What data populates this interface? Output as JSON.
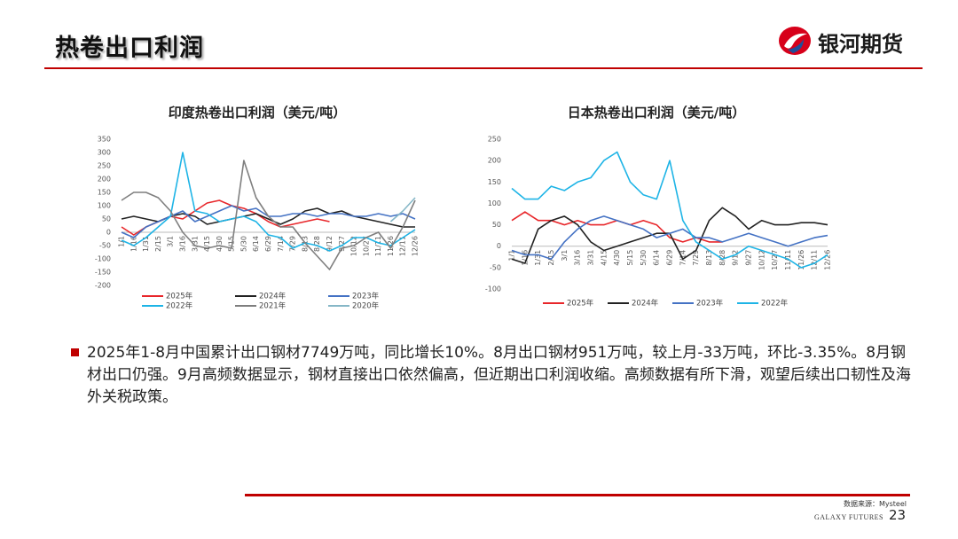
{
  "header": {
    "title": "热卷出口利润",
    "logo": "银河期货"
  },
  "chart_data": [
    {
      "type": "line",
      "title": "印度热卷出口利润（美元/吨）",
      "categories": [
        "1/1",
        "1/16",
        "1/31",
        "2/15",
        "3/1",
        "3/16",
        "3/31",
        "4/15",
        "4/30",
        "5/15",
        "5/30",
        "6/14",
        "6/29",
        "7/14",
        "7/29",
        "8/13",
        "8/28",
        "9/12",
        "9/27",
        "10/12",
        "10/27",
        "11/11",
        "11/26",
        "12/11",
        "12/26"
      ],
      "ylim": [
        -200,
        350
      ],
      "yticks": [
        -200,
        -150,
        -100,
        -50,
        0,
        50,
        100,
        150,
        200,
        250,
        300,
        350
      ],
      "legend": "bottom",
      "series": [
        {
          "name": "2025年",
          "color": "#e8262a",
          "values": [
            20,
            -10,
            20,
            40,
            60,
            50,
            80,
            110,
            120,
            100,
            90,
            70,
            40,
            20,
            30,
            40,
            50,
            40,
            null,
            null,
            null,
            null,
            null,
            null,
            null
          ]
        },
        {
          "name": "2024年",
          "color": "#222222",
          "values": [
            50,
            60,
            50,
            40,
            60,
            70,
            60,
            30,
            40,
            50,
            60,
            70,
            50,
            30,
            50,
            80,
            90,
            70,
            80,
            60,
            50,
            40,
            30,
            20,
            20
          ]
        },
        {
          "name": "2023年",
          "color": "#4472c4",
          "values": [
            0,
            -20,
            20,
            40,
            60,
            80,
            40,
            60,
            80,
            100,
            80,
            90,
            60,
            60,
            70,
            70,
            60,
            70,
            70,
            60,
            60,
            70,
            60,
            70,
            50
          ]
        },
        {
          "name": "2022年",
          "color": "#1eb4e6",
          "values": [
            -30,
            -50,
            -20,
            20,
            60,
            300,
            80,
            70,
            40,
            50,
            60,
            40,
            -10,
            -20,
            -60,
            -40,
            -50,
            -70,
            -50,
            -20,
            -20,
            -40,
            -50,
            -20,
            10
          ]
        },
        {
          "name": "2021年",
          "color": "#7f7f7f",
          "values": [
            120,
            150,
            150,
            130,
            80,
            0,
            -50,
            -60,
            -50,
            -60,
            270,
            130,
            60,
            20,
            20,
            -40,
            -90,
            -140,
            -60,
            -50,
            -20,
            0,
            -60,
            20,
            120
          ]
        },
        {
          "name": "2020年",
          "color": "#86b7c7",
          "values": [
            null,
            null,
            null,
            null,
            null,
            null,
            null,
            null,
            null,
            null,
            null,
            null,
            null,
            null,
            null,
            null,
            null,
            null,
            null,
            null,
            null,
            null,
            40,
            80,
            130
          ]
        }
      ]
    },
    {
      "type": "line",
      "title": "日本热卷出口利润（美元/吨）",
      "categories": [
        "1/1",
        "1/16",
        "1/31",
        "2/15",
        "3/1",
        "3/16",
        "3/31",
        "4/15",
        "4/30",
        "5/15",
        "5/30",
        "6/14",
        "6/29",
        "7/14",
        "7/29",
        "8/13",
        "8/28",
        "9/12",
        "9/27",
        "10/12",
        "10/27",
        "11/11",
        "11/26",
        "12/11",
        "12/26"
      ],
      "ylim": [
        -100,
        250
      ],
      "yticks": [
        -100,
        -50,
        0,
        50,
        100,
        150,
        200,
        250
      ],
      "legend": "bottom",
      "series": [
        {
          "name": "2025年",
          "color": "#e8262a",
          "values": [
            60,
            80,
            60,
            60,
            50,
            60,
            50,
            50,
            60,
            50,
            60,
            50,
            20,
            10,
            20,
            10,
            10,
            null,
            null,
            null,
            null,
            null,
            null,
            null,
            null
          ]
        },
        {
          "name": "2024年",
          "color": "#222222",
          "values": [
            -30,
            -40,
            40,
            60,
            70,
            50,
            10,
            -10,
            0,
            10,
            20,
            30,
            30,
            -30,
            -10,
            60,
            90,
            70,
            40,
            60,
            50,
            50,
            55,
            55,
            50
          ]
        },
        {
          "name": "2023年",
          "color": "#4472c4",
          "values": [
            -10,
            -20,
            -20,
            -30,
            10,
            40,
            60,
            70,
            60,
            50,
            40,
            20,
            30,
            40,
            20,
            20,
            10,
            20,
            30,
            20,
            10,
            0,
            10,
            20,
            25
          ]
        },
        {
          "name": "2022年",
          "color": "#1eb4e6",
          "values": [
            135,
            110,
            110,
            140,
            130,
            150,
            160,
            200,
            220,
            150,
            120,
            110,
            200,
            60,
            10,
            -10,
            -30,
            -20,
            0,
            -10,
            -20,
            -30,
            -50,
            -40,
            -20
          ]
        }
      ]
    }
  ],
  "body": {
    "text": "2025年1-8月中国累计出口钢材7749万吨，同比增长10%。8月出口钢材951万吨，较上月-33万吨，环比-3.35%。8月钢材出口仍强。9月高频数据显示，钢材直接出口依然偏高，但近期出口利润收缩。高频数据有所下滑，观望后续出口韧性及海外关税政策。"
  },
  "footer": {
    "source": "数据来源：Mysteel",
    "brand": "GALAXY FUTURES",
    "page": "23"
  }
}
